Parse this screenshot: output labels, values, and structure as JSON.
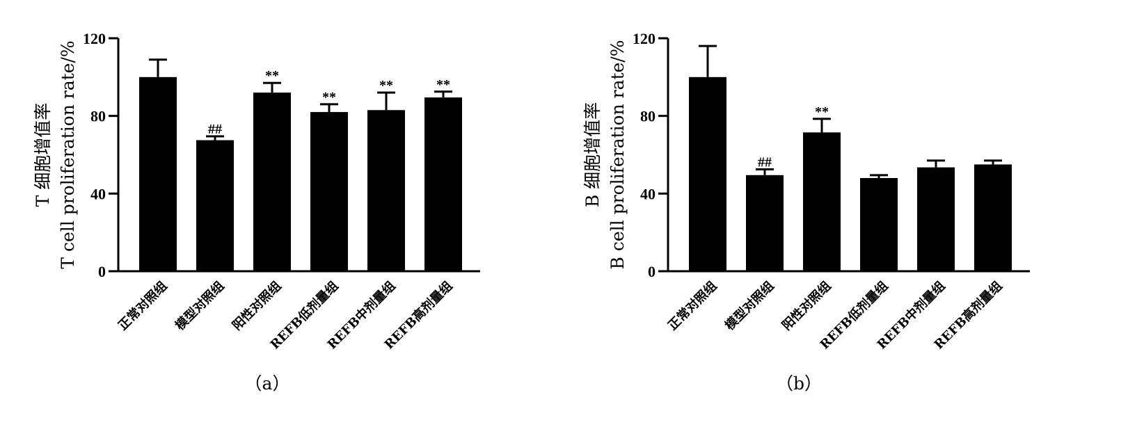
{
  "chart_data": [
    {
      "type": "bar",
      "panel_label": "（a）",
      "ylabel_cn": "T 细胞增值率",
      "ylabel_en": "T  cell  proliferation  rate/%",
      "ylim": [
        0,
        120
      ],
      "yticks": [
        0,
        40,
        80,
        120
      ],
      "categories": [
        "正常对照组",
        "模型对照组",
        "阳性对照组",
        "REFB低剂量组",
        "REFB中剂量组",
        "REFB高剂量组"
      ],
      "values": [
        100,
        67.5,
        92,
        82,
        83,
        89.5
      ],
      "error": [
        9,
        2,
        5,
        4,
        9,
        3
      ],
      "significance": [
        "",
        "##",
        "**",
        "**",
        "**",
        "**"
      ],
      "bar_color": "#000000"
    },
    {
      "type": "bar",
      "panel_label": "（b）",
      "ylabel_cn": "B 细胞增值率",
      "ylabel_en": "B  cell  proliferation  rate/%",
      "ylim": [
        0,
        120
      ],
      "yticks": [
        0,
        40,
        80,
        120
      ],
      "categories": [
        "正常对照组",
        "模型对照组",
        "阳性对照组",
        "REFB低剂量组",
        "REFB中剂量组",
        "REFB高剂量组"
      ],
      "values": [
        100,
        49.5,
        71.5,
        48,
        53.5,
        55
      ],
      "error": [
        16,
        3,
        7,
        1.5,
        3.5,
        2
      ],
      "significance": [
        "",
        "##",
        "**",
        "",
        "",
        ""
      ],
      "bar_color": "#000000"
    }
  ]
}
